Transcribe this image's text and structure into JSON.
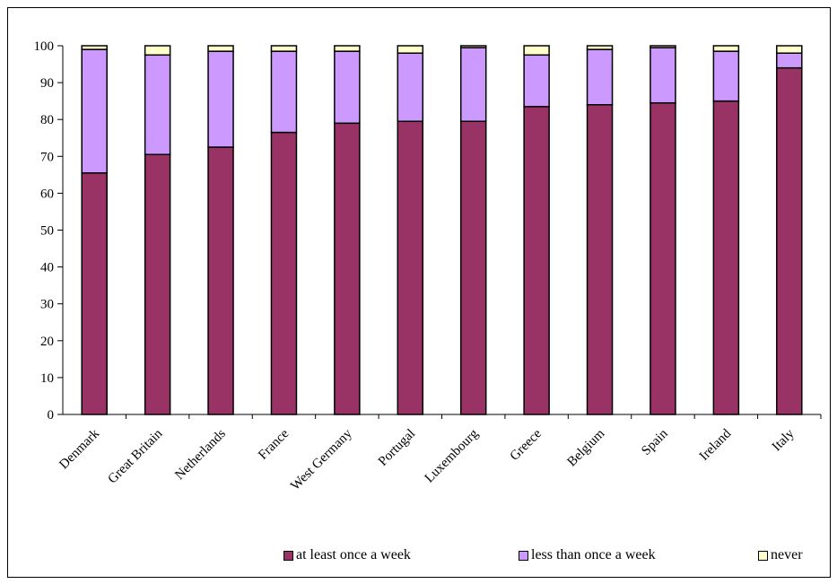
{
  "chart_data": {
    "type": "bar",
    "stacked": true,
    "title": "",
    "xlabel": "",
    "ylabel": "",
    "ylim": [
      0,
      100
    ],
    "yticks": [
      0,
      10,
      20,
      30,
      40,
      50,
      60,
      70,
      80,
      90,
      100
    ],
    "grid": false,
    "legend_position": "bottom-right",
    "categories": [
      "Denmark",
      "Great Britain",
      "Netherlands",
      "France",
      "West Germany",
      "Portugal",
      "Luxembourg",
      "Greece",
      "Belgium",
      "Spain",
      "Ireland",
      "Italy"
    ],
    "series": [
      {
        "name": "at least once a week",
        "color": "#993366",
        "values": [
          65.5,
          70.5,
          72.5,
          76.5,
          79,
          79.5,
          79.5,
          83.5,
          84,
          84.5,
          85,
          94
        ]
      },
      {
        "name": "less than once a week",
        "color": "#cc99ff",
        "values": [
          33.5,
          27,
          26,
          22,
          19.5,
          18.5,
          20,
          14,
          15,
          15,
          13.5,
          4
        ]
      },
      {
        "name": "never",
        "color": "#ffffcc",
        "values": [
          1,
          2.5,
          1.5,
          1.5,
          1.5,
          2,
          0.5,
          2.5,
          1,
          0.5,
          1.5,
          2
        ]
      }
    ]
  }
}
